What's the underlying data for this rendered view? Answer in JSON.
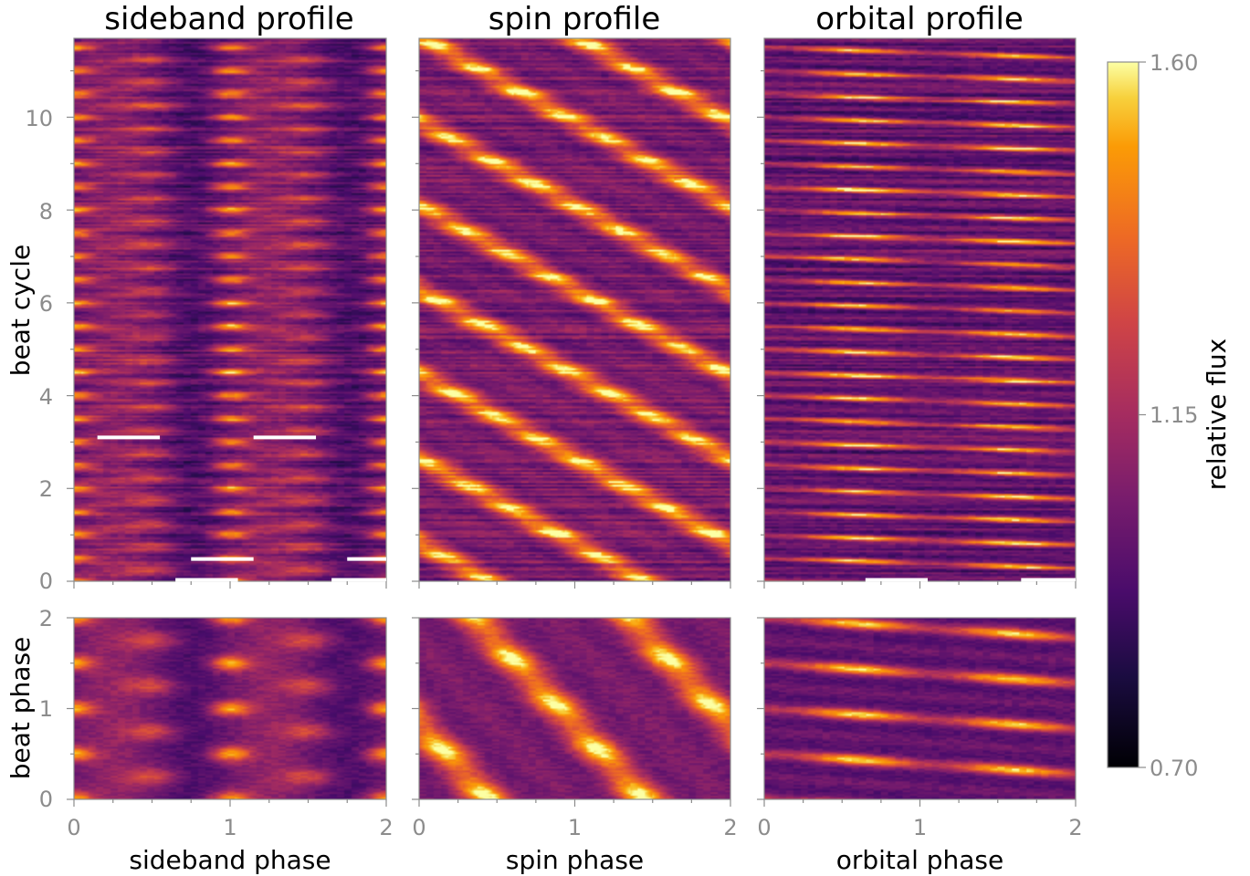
{
  "chart_data": {
    "type": "heatmap",
    "colormap": "inferno",
    "colorbar": {
      "label": "relative flux",
      "range": [
        0.7,
        1.6
      ],
      "ticks": [
        "0.70",
        "1.15",
        "1.60"
      ]
    },
    "shared_y_labels": {
      "top_row": "beat cycle",
      "bottom_row": "beat phase"
    },
    "y_ticks": {
      "top_row": [
        "0",
        "2",
        "4",
        "6",
        "8",
        "10"
      ],
      "bottom_row": [
        "0",
        "1",
        "2"
      ]
    },
    "x_ticks": [
      "0",
      "1",
      "2"
    ],
    "panels": [
      {
        "title": "sideband profile",
        "xlabel": "sideband phase",
        "xlim": [
          0,
          2
        ],
        "top_ylim": [
          0,
          11.7
        ],
        "bottom_ylim": [
          0,
          2
        ],
        "pattern": "vertical columns with bright spots near phase 0.0, 1.0 and 2.0, repeating each beat cycle",
        "white_bars": [
          {
            "x0": 0.15,
            "x1": 0.55,
            "y": 3.1
          },
          {
            "x0": 1.15,
            "x1": 1.55,
            "y": 3.1
          },
          {
            "x0": 0.75,
            "x1": 1.15,
            "y": 0.48
          },
          {
            "x0": 1.75,
            "x1": 2.0,
            "y": 0.48
          },
          {
            "x0": 0.65,
            "x1": 1.05,
            "y": 0.03
          },
          {
            "x0": 1.65,
            "x1": 2.0,
            "y": 0.03
          }
        ]
      },
      {
        "title": "spin profile",
        "xlabel": "spin phase",
        "xlim": [
          0,
          2
        ],
        "top_ylim": [
          0,
          11.7
        ],
        "bottom_ylim": [
          0,
          2
        ],
        "pattern": "bright blobs drifting diagonally (phase decreasing with beat cycle), two per beat cycle",
        "white_bars": []
      },
      {
        "title": "orbital profile",
        "xlabel": "orbital phase",
        "xlim": [
          0,
          2
        ],
        "top_ylim": [
          0,
          11.7
        ],
        "bottom_ylim": [
          0,
          2
        ],
        "pattern": "thin bright streaks slanting downward to the right, two per beat cycle",
        "white_bars": [
          {
            "x0": 0.65,
            "x1": 1.05,
            "y": 0.03
          },
          {
            "x0": 1.65,
            "x1": 2.0,
            "y": 0.03
          }
        ]
      }
    ]
  }
}
